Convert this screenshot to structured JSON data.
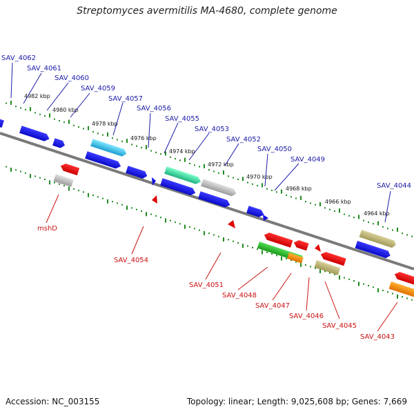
{
  "title": "Streptomyces avermitilis MA-4680, complete genome",
  "footer": {
    "accession": "Accession: NC_003155",
    "summary": "Topology: linear; Length: 9,025,608 bp; Genes: 7,669"
  },
  "colors": {
    "forward_label": "#1a1aa8",
    "reverse_label": "#cc1111",
    "tick": "#1e8a1e",
    "axis": "#7a7a7a"
  },
  "scale_labels": [
    "4982 kbp",
    "4980 kbp",
    "4978 kbp",
    "4976 kbp",
    "4974 kbp",
    "4972 kbp",
    "4970 kbp",
    "4968 kbp",
    "4966 kbp",
    "4964 kbp"
  ],
  "forward_genes": [
    "SAV_4062",
    "SAV_4061",
    "SAV_4060",
    "SAV_4059",
    "SAV_4057",
    "SAV_4056",
    "SAV_4055",
    "SAV_4053",
    "SAV_4052",
    "SAV_4050",
    "SAV_4049",
    "SAV_4044"
  ],
  "reverse_genes": [
    "mshD",
    "SAV_4054",
    "SAV_4051",
    "SAV_4048",
    "SAV_4047",
    "SAV_4046",
    "SAV_4045",
    "SAV_4043"
  ]
}
